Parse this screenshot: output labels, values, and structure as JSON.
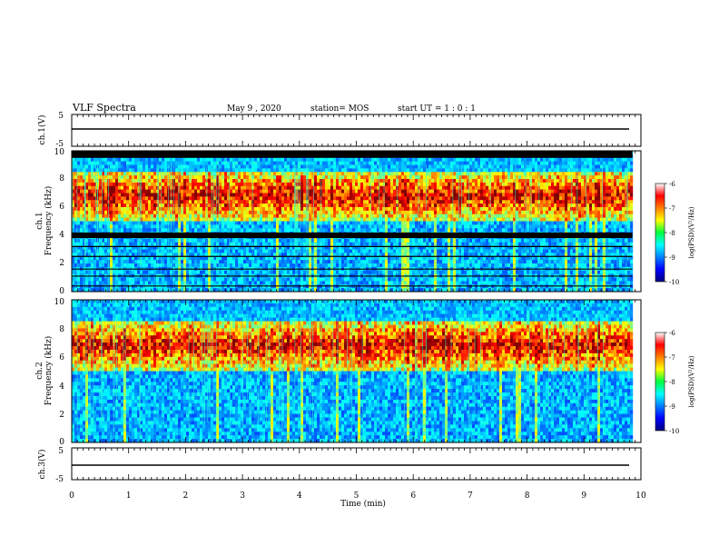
{
  "header": {
    "title": "VLF Spectra",
    "date": "May 9  , 2020",
    "station": "station= MOS",
    "start": "start  UT =   1 : 0  : 1"
  },
  "chart_data": [
    {
      "type": "line",
      "panel": "ch1-waveform",
      "ylabel": "ch.1(V)",
      "ylim": [
        -5,
        5
      ],
      "yticks": [
        "5",
        "-5"
      ],
      "x": [
        0,
        10
      ],
      "values": [
        0,
        0
      ],
      "color": "#000000"
    },
    {
      "type": "heatmap",
      "panel": "ch1-spectrogram",
      "ylabel": "ch.1\nFrequency  (kHz)",
      "ylim": [
        0,
        10
      ],
      "yticks": [
        "0",
        "2",
        "4",
        "6",
        "8",
        "10"
      ],
      "xlim": [
        0,
        10
      ],
      "colorbar": {
        "label": "log(PSD)(V²/Hz)",
        "range": [
          -10,
          -6
        ],
        "ticks": [
          "-6",
          "-7",
          "-8",
          "-9",
          "-10"
        ],
        "colormap": "jet"
      },
      "features": {
        "saturated_band_khz": [
          9.5,
          10
        ],
        "dark_band_khz": [
          3.8,
          4.2
        ],
        "chorus_band_khz": [
          5,
          8.5
        ],
        "chorus_peak_khz": 6.8,
        "data_end_min": 9.85
      }
    },
    {
      "type": "heatmap",
      "panel": "ch2-spectrogram",
      "ylabel": "ch.2\nFrequency  (kHz)",
      "ylim": [
        0,
        10
      ],
      "yticks": [
        "0",
        "2",
        "4",
        "6",
        "8",
        "10"
      ],
      "xlim": [
        0,
        10
      ],
      "colorbar": {
        "label": "log(PSD)(V²/Hz)",
        "range": [
          -10,
          -6
        ],
        "ticks": [
          "-6",
          "-7",
          "-8",
          "-9",
          "-10"
        ],
        "colormap": "jet"
      },
      "features": {
        "chorus_band_khz": [
          5,
          8.5
        ],
        "chorus_peak_khz": 6.8,
        "data_end_min": 9.85
      }
    },
    {
      "type": "line",
      "panel": "ch3-waveform",
      "ylabel": "ch.3(V)",
      "ylim": [
        -5,
        5
      ],
      "yticks": [
        "5",
        "-5"
      ],
      "x": [
        0,
        10
      ],
      "values": [
        0,
        0
      ],
      "color": "#000000"
    }
  ],
  "xaxis": {
    "label": "Time  (min)",
    "ticks": [
      "0",
      "1",
      "2",
      "3",
      "4",
      "5",
      "6",
      "7",
      "8",
      "9",
      "10"
    ]
  }
}
